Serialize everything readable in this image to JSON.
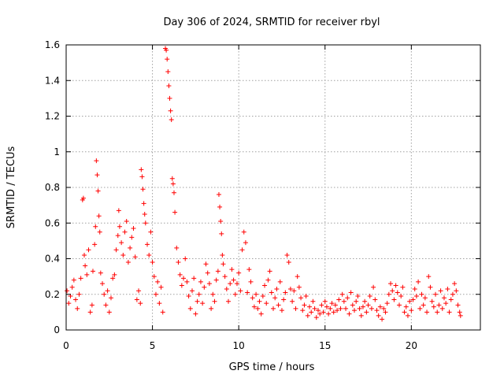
{
  "chart_data": {
    "type": "scatter",
    "title": "Day 306 of 2024, SRMTID for receiver rbyl",
    "xlabel": "GPS time / hours",
    "ylabel": "SRMTID / TECUs",
    "xlim": [
      0,
      24
    ],
    "ylim": [
      0,
      1.6
    ],
    "grid": true,
    "marker": "+",
    "color": "#ff0000",
    "x_ticks": [
      0,
      5,
      10,
      15,
      20
    ],
    "x_tick_labels": [
      "0",
      "5",
      "10",
      "15",
      "20"
    ],
    "y_ticks": [
      0,
      0.2,
      0.4,
      0.6,
      0.8,
      1.0,
      1.2,
      1.4,
      1.6
    ],
    "y_tick_labels": [
      "0",
      "0.2",
      "0.4",
      "0.6",
      "0.8",
      "1",
      "1.2",
      "1.4",
      "1.6"
    ],
    "series": [
      {
        "name": "SRMTID",
        "points": [
          [
            0.05,
            0.22
          ],
          [
            0.15,
            0.15
          ],
          [
            0.25,
            0.19
          ],
          [
            0.35,
            0.24
          ],
          [
            0.45,
            0.28
          ],
          [
            0.55,
            0.17
          ],
          [
            0.65,
            0.12
          ],
          [
            0.75,
            0.2
          ],
          [
            0.85,
            0.29
          ],
          [
            0.95,
            0.73
          ],
          [
            1.0,
            0.74
          ],
          [
            1.05,
            0.42
          ],
          [
            1.1,
            0.36
          ],
          [
            1.2,
            0.31
          ],
          [
            1.3,
            0.45
          ],
          [
            1.4,
            0.1
          ],
          [
            1.5,
            0.14
          ],
          [
            1.55,
            0.33
          ],
          [
            1.65,
            0.48
          ],
          [
            1.7,
            0.58
          ],
          [
            1.75,
            0.95
          ],
          [
            1.8,
            0.87
          ],
          [
            1.85,
            0.78
          ],
          [
            1.9,
            0.64
          ],
          [
            1.95,
            0.55
          ],
          [
            2.0,
            0.32
          ],
          [
            2.1,
            0.26
          ],
          [
            2.2,
            0.2
          ],
          [
            2.3,
            0.14
          ],
          [
            2.4,
            0.22
          ],
          [
            2.5,
            0.1
          ],
          [
            2.6,
            0.18
          ],
          [
            2.7,
            0.29
          ],
          [
            2.8,
            0.31
          ],
          [
            2.9,
            0.45
          ],
          [
            3.0,
            0.53
          ],
          [
            3.05,
            0.67
          ],
          [
            3.1,
            0.58
          ],
          [
            3.2,
            0.49
          ],
          [
            3.3,
            0.42
          ],
          [
            3.4,
            0.55
          ],
          [
            3.5,
            0.61
          ],
          [
            3.6,
            0.38
          ],
          [
            3.7,
            0.46
          ],
          [
            3.8,
            0.52
          ],
          [
            3.9,
            0.57
          ],
          [
            4.0,
            0.41
          ],
          [
            4.1,
            0.17
          ],
          [
            4.2,
            0.22
          ],
          [
            4.3,
            0.15
          ],
          [
            4.35,
            0.9
          ],
          [
            4.4,
            0.86
          ],
          [
            4.45,
            0.79
          ],
          [
            4.5,
            0.71
          ],
          [
            4.55,
            0.65
          ],
          [
            4.6,
            0.6
          ],
          [
            4.7,
            0.48
          ],
          [
            4.8,
            0.42
          ],
          [
            4.9,
            0.55
          ],
          [
            5.0,
            0.38
          ],
          [
            5.1,
            0.3
          ],
          [
            5.2,
            0.2
          ],
          [
            5.3,
            0.27
          ],
          [
            5.4,
            0.15
          ],
          [
            5.5,
            0.24
          ],
          [
            5.6,
            0.1
          ],
          [
            5.75,
            1.58
          ],
          [
            5.8,
            1.57
          ],
          [
            5.85,
            1.52
          ],
          [
            5.9,
            1.45
          ],
          [
            5.95,
            1.37
          ],
          [
            6.0,
            1.3
          ],
          [
            6.05,
            1.23
          ],
          [
            6.1,
            1.18
          ],
          [
            6.15,
            0.85
          ],
          [
            6.2,
            0.82
          ],
          [
            6.25,
            0.77
          ],
          [
            6.3,
            0.66
          ],
          [
            6.4,
            0.46
          ],
          [
            6.5,
            0.38
          ],
          [
            6.6,
            0.31
          ],
          [
            6.7,
            0.25
          ],
          [
            6.8,
            0.29
          ],
          [
            6.9,
            0.4
          ],
          [
            7.0,
            0.27
          ],
          [
            7.1,
            0.19
          ],
          [
            7.2,
            0.12
          ],
          [
            7.3,
            0.22
          ],
          [
            7.4,
            0.29
          ],
          [
            7.5,
            0.09
          ],
          [
            7.6,
            0.16
          ],
          [
            7.7,
            0.2
          ],
          [
            7.8,
            0.27
          ],
          [
            7.9,
            0.15
          ],
          [
            8.0,
            0.24
          ],
          [
            8.1,
            0.37
          ],
          [
            8.2,
            0.32
          ],
          [
            8.3,
            0.26
          ],
          [
            8.4,
            0.12
          ],
          [
            8.5,
            0.2
          ],
          [
            8.6,
            0.16
          ],
          [
            8.7,
            0.28
          ],
          [
            8.8,
            0.33
          ],
          [
            8.85,
            0.76
          ],
          [
            8.9,
            0.69
          ],
          [
            8.95,
            0.61
          ],
          [
            9.0,
            0.54
          ],
          [
            9.05,
            0.42
          ],
          [
            9.1,
            0.37
          ],
          [
            9.2,
            0.3
          ],
          [
            9.3,
            0.23
          ],
          [
            9.4,
            0.16
          ],
          [
            9.5,
            0.26
          ],
          [
            9.6,
            0.34
          ],
          [
            9.7,
            0.28
          ],
          [
            9.8,
            0.2
          ],
          [
            9.9,
            0.26
          ],
          [
            10.0,
            0.32
          ],
          [
            10.1,
            0.22
          ],
          [
            10.2,
            0.45
          ],
          [
            10.3,
            0.55
          ],
          [
            10.4,
            0.49
          ],
          [
            10.5,
            0.21
          ],
          [
            10.6,
            0.34
          ],
          [
            10.7,
            0.27
          ],
          [
            10.8,
            0.18
          ],
          [
            10.9,
            0.13
          ],
          [
            11.0,
            0.2
          ],
          [
            11.1,
            0.12
          ],
          [
            11.2,
            0.16
          ],
          [
            11.3,
            0.09
          ],
          [
            11.4,
            0.19
          ],
          [
            11.5,
            0.25
          ],
          [
            11.6,
            0.15
          ],
          [
            11.7,
            0.28
          ],
          [
            11.8,
            0.33
          ],
          [
            11.9,
            0.21
          ],
          [
            12.0,
            0.12
          ],
          [
            12.1,
            0.18
          ],
          [
            12.2,
            0.23
          ],
          [
            12.3,
            0.14
          ],
          [
            12.4,
            0.27
          ],
          [
            12.5,
            0.11
          ],
          [
            12.6,
            0.17
          ],
          [
            12.7,
            0.21
          ],
          [
            12.8,
            0.42
          ],
          [
            12.9,
            0.38
          ],
          [
            13.0,
            0.23
          ],
          [
            13.1,
            0.16
          ],
          [
            13.2,
            0.22
          ],
          [
            13.3,
            0.12
          ],
          [
            13.4,
            0.3
          ],
          [
            13.5,
            0.24
          ],
          [
            13.6,
            0.18
          ],
          [
            13.7,
            0.11
          ],
          [
            13.8,
            0.14
          ],
          [
            13.9,
            0.19
          ],
          [
            14.0,
            0.08
          ],
          [
            14.1,
            0.13
          ],
          [
            14.2,
            0.1
          ],
          [
            14.3,
            0.16
          ],
          [
            14.4,
            0.12
          ],
          [
            14.5,
            0.07
          ],
          [
            14.6,
            0.11
          ],
          [
            14.7,
            0.09
          ],
          [
            14.8,
            0.14
          ],
          [
            14.9,
            0.1
          ],
          [
            15.0,
            0.16
          ],
          [
            15.1,
            0.13
          ],
          [
            15.2,
            0.09
          ],
          [
            15.3,
            0.12
          ],
          [
            15.4,
            0.15
          ],
          [
            15.5,
            0.1
          ],
          [
            15.6,
            0.14
          ],
          [
            15.7,
            0.11
          ],
          [
            15.8,
            0.17
          ],
          [
            15.9,
            0.12
          ],
          [
            16.0,
            0.2
          ],
          [
            16.1,
            0.16
          ],
          [
            16.2,
            0.12
          ],
          [
            16.3,
            0.18
          ],
          [
            16.4,
            0.09
          ],
          [
            16.5,
            0.21
          ],
          [
            16.6,
            0.14
          ],
          [
            16.7,
            0.11
          ],
          [
            16.8,
            0.16
          ],
          [
            16.9,
            0.19
          ],
          [
            17.0,
            0.12
          ],
          [
            17.1,
            0.08
          ],
          [
            17.2,
            0.13
          ],
          [
            17.3,
            0.16
          ],
          [
            17.4,
            0.1
          ],
          [
            17.5,
            0.14
          ],
          [
            17.6,
            0.19
          ],
          [
            17.7,
            0.12
          ],
          [
            17.8,
            0.24
          ],
          [
            17.9,
            0.17
          ],
          [
            18.0,
            0.11
          ],
          [
            18.1,
            0.08
          ],
          [
            18.2,
            0.13
          ],
          [
            18.3,
            0.06
          ],
          [
            18.4,
            0.12
          ],
          [
            18.5,
            0.1
          ],
          [
            18.6,
            0.15
          ],
          [
            18.7,
            0.2
          ],
          [
            18.8,
            0.26
          ],
          [
            18.9,
            0.22
          ],
          [
            19.0,
            0.17
          ],
          [
            19.1,
            0.25
          ],
          [
            19.2,
            0.21
          ],
          [
            19.3,
            0.14
          ],
          [
            19.4,
            0.19
          ],
          [
            19.5,
            0.24
          ],
          [
            19.6,
            0.1
          ],
          [
            19.7,
            0.13
          ],
          [
            19.8,
            0.08
          ],
          [
            19.9,
            0.16
          ],
          [
            20.0,
            0.11
          ],
          [
            20.1,
            0.17
          ],
          [
            20.2,
            0.23
          ],
          [
            20.3,
            0.19
          ],
          [
            20.4,
            0.27
          ],
          [
            20.5,
            0.12
          ],
          [
            20.6,
            0.2
          ],
          [
            20.7,
            0.14
          ],
          [
            20.8,
            0.18
          ],
          [
            20.9,
            0.1
          ],
          [
            21.0,
            0.3
          ],
          [
            21.1,
            0.24
          ],
          [
            21.2,
            0.16
          ],
          [
            21.3,
            0.13
          ],
          [
            21.4,
            0.2
          ],
          [
            21.5,
            0.1
          ],
          [
            21.6,
            0.14
          ],
          [
            21.7,
            0.22
          ],
          [
            21.8,
            0.12
          ],
          [
            21.9,
            0.18
          ],
          [
            22.0,
            0.15
          ],
          [
            22.1,
            0.23
          ],
          [
            22.2,
            0.1
          ],
          [
            22.3,
            0.17
          ],
          [
            22.4,
            0.2
          ],
          [
            22.5,
            0.26
          ],
          [
            22.6,
            0.22
          ],
          [
            22.7,
            0.14
          ],
          [
            22.8,
            0.1
          ],
          [
            22.85,
            0.08
          ]
        ]
      }
    ]
  }
}
